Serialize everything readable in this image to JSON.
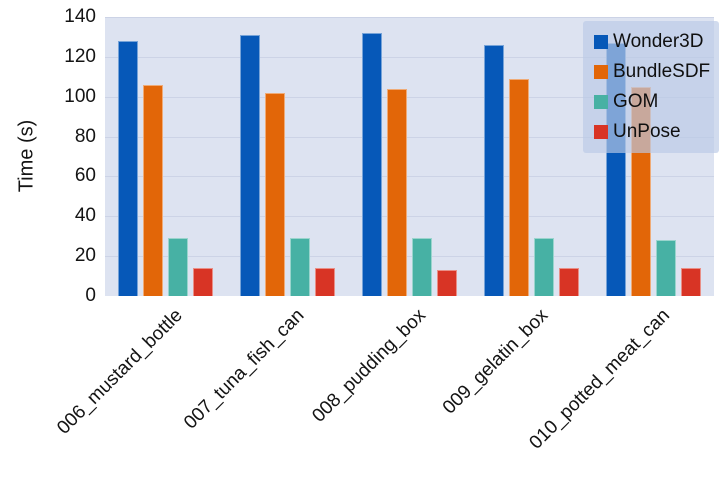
{
  "figure": {
    "kind": "static-bar-chart",
    "background": "#ffffff",
    "plot_background": "#dde3f1",
    "gridline_color": "#ccd3e6",
    "legend_background": "rgba(186,202,230,0.67)"
  },
  "chart_data": {
    "type": "bar",
    "title": "",
    "xlabel": "",
    "ylabel": "Time (s)",
    "ylim": [
      0,
      140
    ],
    "yticks": [
      0,
      20,
      40,
      60,
      80,
      100,
      120,
      140
    ],
    "grid": true,
    "legend_position": "upper right",
    "categories": [
      "006_mustard_bottle",
      "007_tuna_fish_can",
      "008_pudding_box",
      "009_gelatin_box",
      "010_potted_meat_can"
    ],
    "series": [
      {
        "name": "Wonder3D",
        "color": "#0658b8",
        "values": [
          128,
          131,
          132,
          126,
          127
        ]
      },
      {
        "name": "BundleSDF",
        "color": "#e26608",
        "values": [
          106,
          102,
          104,
          109,
          105
        ]
      },
      {
        "name": "GOM",
        "color": "#47b1a4",
        "values": [
          29,
          29,
          29,
          29,
          28
        ]
      },
      {
        "name": "UnPose",
        "color": "#d83425",
        "values": [
          14,
          14,
          13,
          14,
          14
        ]
      }
    ]
  }
}
